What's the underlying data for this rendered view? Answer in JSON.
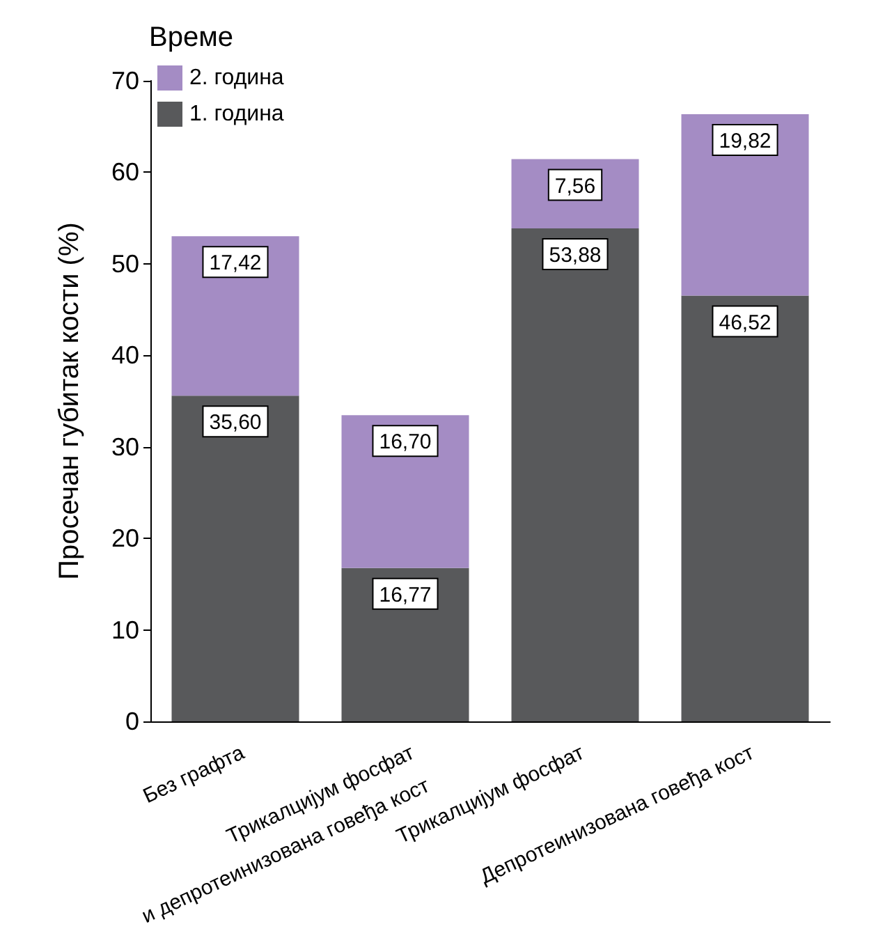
{
  "chart_data": {
    "type": "bar",
    "stacked": true,
    "ylabel": "Просечан губитак кости (%)",
    "legend_title": "Време",
    "legend": "top left",
    "grid": false,
    "categories": [
      "Без графта",
      "Трикалцијум фосфат\nи депротеинизована говеђа кост",
      "Трикалцијум фосфат",
      "Депротеинизована говеђа кост"
    ],
    "series": [
      {
        "name": "1. година",
        "color": "#58595b",
        "values": [
          35.6,
          16.77,
          53.88,
          46.52
        ],
        "value_labels": [
          "35,60",
          "16,77",
          "53,88",
          "46,52"
        ]
      },
      {
        "name": "2. година",
        "color": "#a48cc4",
        "values": [
          17.42,
          16.7,
          7.56,
          19.82
        ],
        "value_labels": [
          "17,42",
          "16,70",
          "7,56",
          "19,82"
        ]
      }
    ],
    "ylim": [
      0,
      70
    ],
    "yticks": [
      0,
      10,
      20,
      30,
      40,
      50,
      60,
      70
    ]
  }
}
